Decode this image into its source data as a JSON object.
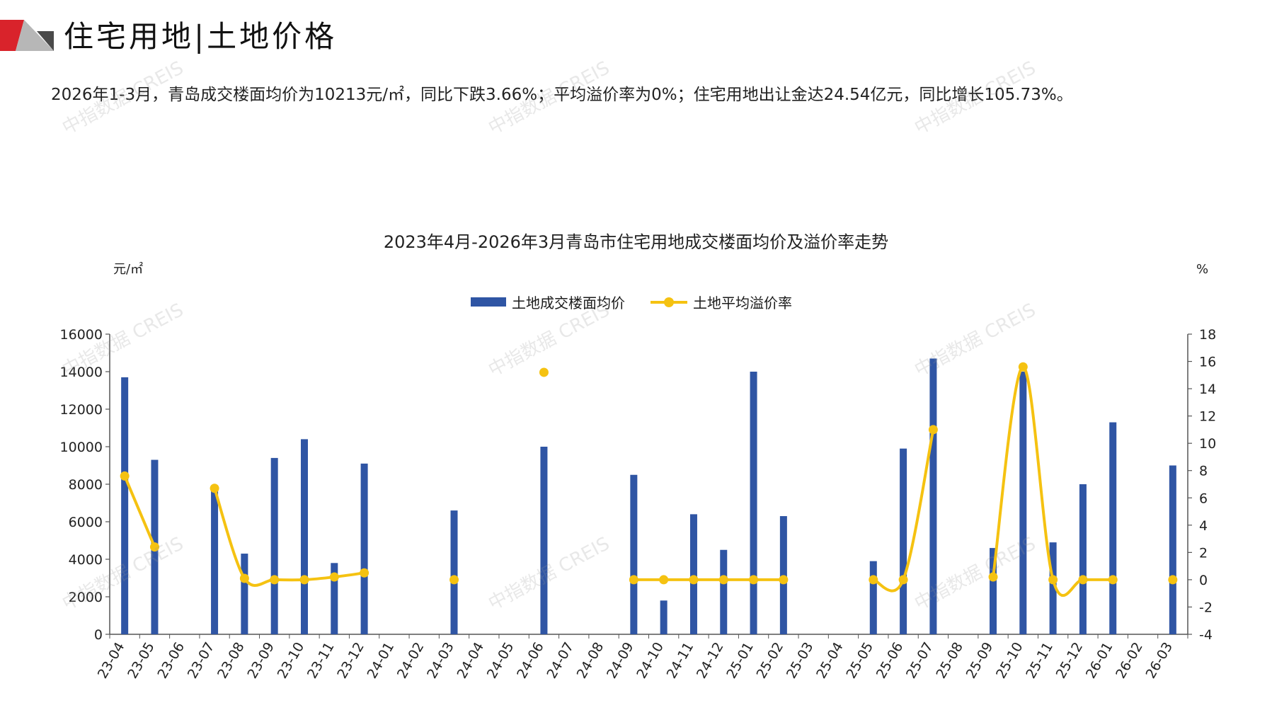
{
  "page": {
    "title": "住宅用地|土地价格",
    "summary": "2026年1-3月，青岛成交楼面均价为10213元/㎡，同比下跌3.66%；平均溢价率为0%；住宅用地出让金达24.54亿元，同比增长105.73%。",
    "watermark": "中指数据 CREIS"
  },
  "colors": {
    "bar": "#2f55a4",
    "line": "#f5c211",
    "logo_red": "#d9232b",
    "logo_gray": "#b7b7b7"
  },
  "chart_data": {
    "type": "bar",
    "title": "2023年4月-2026年3月青岛市住宅用地成交楼面均价及溢价率走势",
    "y_left_unit": "元/㎡",
    "y_right_unit": "%",
    "categories": [
      "23-04",
      "23-05",
      "23-06",
      "23-07",
      "23-08",
      "23-09",
      "23-10",
      "23-11",
      "23-12",
      "24-01",
      "24-02",
      "24-03",
      "24-04",
      "24-05",
      "24-06",
      "24-07",
      "24-08",
      "24-09",
      "24-10",
      "24-11",
      "24-12",
      "25-01",
      "25-02",
      "25-03",
      "25-04",
      "25-05",
      "25-06",
      "25-07",
      "25-08",
      "25-09",
      "25-10",
      "25-11",
      "25-12",
      "26-01",
      "26-02",
      "26-03"
    ],
    "y_left_lim": [
      0,
      16000
    ],
    "y_left_ticks": [
      0,
      2000,
      4000,
      6000,
      8000,
      10000,
      12000,
      14000,
      16000
    ],
    "y_right_lim": [
      -4,
      18
    ],
    "y_right_ticks": [
      -4,
      -2,
      0,
      2,
      4,
      6,
      8,
      10,
      12,
      14,
      16,
      18
    ],
    "legend_position": "top-center",
    "series": [
      {
        "name": "土地成交楼面均价",
        "type": "bar",
        "axis": "left",
        "values": [
          13700,
          9300,
          null,
          7800,
          4300,
          9400,
          10400,
          3800,
          9100,
          null,
          null,
          6600,
          null,
          null,
          10000,
          null,
          null,
          8500,
          1800,
          6400,
          4500,
          14000,
          6300,
          null,
          null,
          3900,
          9900,
          14700,
          null,
          4600,
          14000,
          4900,
          8000,
          11300,
          null,
          9000
        ]
      },
      {
        "name": "土地平均溢价率",
        "type": "line",
        "axis": "right",
        "values": [
          7.6,
          2.4,
          null,
          6.7,
          0.1,
          0,
          0,
          0.2,
          0.5,
          null,
          null,
          0,
          null,
          null,
          15.2,
          null,
          null,
          0,
          0,
          0,
          0,
          0,
          0,
          null,
          null,
          0,
          0,
          11,
          null,
          0.2,
          15.6,
          0,
          0,
          0,
          null,
          0
        ]
      }
    ]
  }
}
